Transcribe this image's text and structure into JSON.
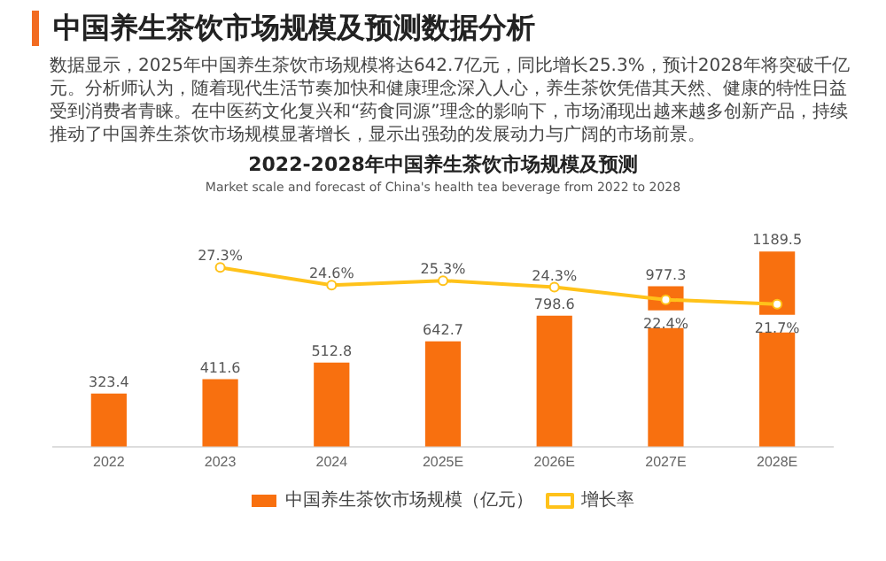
{
  "chart_data": {
    "type": "bar",
    "title": "2022-2028年中国养生茶饮市场规模及预测",
    "subtitle": "Market scale and forecast of China's health tea beverage from 2022 to 2028",
    "annotations": [
      "中国养生茶饮市场规模及预测数据分析",
      "数据显示，2025年中国养生茶饮市场规模将达642.7亿元，同比增长25.3%，预计2028年将突破千亿元。分析师认为，随着现代生活节奏加快和健康理念深入人心，养生茶饮凭借其天然、健康的特性日益受到消费者青睐。在中医药文化复兴和“药食同源”理念的影响下，市场涌现出越来越多创新产品，持续推动了中国养生茶饮市场规模显著增长，显示出强劲的发展动力与广阔的市场前景。"
    ],
    "categories": [
      "2022",
      "2023",
      "2024",
      "2025E",
      "2026E",
      "2027E",
      "2028E"
    ],
    "series": [
      {
        "name": "中国养生茶饮市场规模（亿元）",
        "color": "#f8700f",
        "values": [
          323.4,
          411.6,
          512.8,
          642.7,
          798.6,
          977.3,
          1189.5
        ],
        "value_labels": [
          "323.4",
          "411.6",
          "512.8",
          "642.7",
          "798.6",
          "977.3",
          "1189.5"
        ]
      },
      {
        "name": "增长率",
        "type": "line",
        "axis": "y2",
        "color": "#ffc21a",
        "marker": "circle",
        "values": [
          null,
          27.3,
          24.6,
          25.3,
          24.3,
          22.4,
          21.7
        ],
        "value_labels": [
          null,
          "27.3%",
          "24.6%",
          "25.3%",
          "24.3%",
          "22.4%",
          "21.7%"
        ]
      }
    ],
    "tick_labels": "x",
    "grid": false,
    "legend": "bottom"
  }
}
